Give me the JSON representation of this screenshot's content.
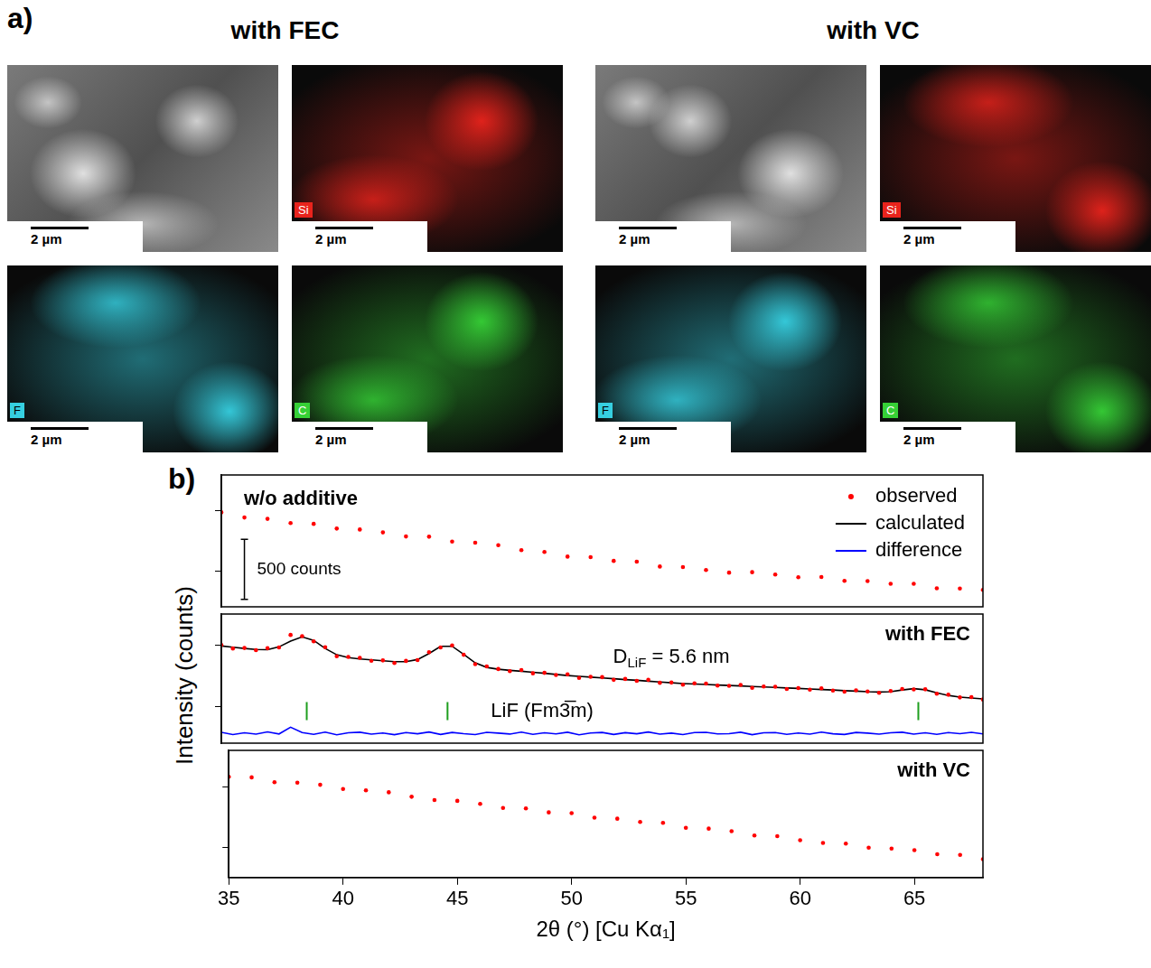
{
  "panel_a": {
    "label": "a)",
    "groups": [
      {
        "title": "with FEC",
        "tiles": [
          {
            "scale_bar": "2 µm"
          },
          {
            "element": "Si",
            "color": "#e8231c",
            "scale_bar": "2 µm"
          },
          {
            "element": "F",
            "color": "#36cfe0",
            "scale_bar": "2 µm"
          },
          {
            "element": "C",
            "color": "#36d036",
            "scale_bar": "2 µm"
          }
        ]
      },
      {
        "title": "with VC",
        "tiles": [
          {
            "scale_bar": "2 µm"
          },
          {
            "element": "Si",
            "color": "#e8231c",
            "scale_bar": "2 µm"
          },
          {
            "element": "F",
            "color": "#36cfe0",
            "scale_bar": "2 µm"
          },
          {
            "element": "C",
            "color": "#36d036",
            "scale_bar": "2 µm"
          }
        ]
      }
    ]
  },
  "panel_b": {
    "label": "b)",
    "y_label": "Intensity (counts)"
  },
  "chart_data": [
    {
      "type": "scatter",
      "title": "w/o additive",
      "x": [
        35,
        36,
        37,
        38,
        39,
        40,
        41,
        42,
        43,
        44,
        45,
        46,
        47,
        48,
        49,
        50,
        51,
        52,
        53,
        54,
        55,
        56,
        57,
        58,
        59,
        60,
        61,
        62,
        63,
        64,
        65,
        66,
        67,
        68
      ],
      "series": [
        {
          "name": "observed",
          "type": "scatter",
          "color": "#ff0000",
          "values": [
            2488,
            2445,
            2434,
            2399,
            2392,
            2353,
            2345,
            2321,
            2287,
            2285,
            2244,
            2235,
            2214,
            2173,
            2158,
            2119,
            2114,
            2083,
            2077,
            2036,
            2031,
            2007,
            1985,
            1989,
            1969,
            1947,
            1949,
            1917,
            1915,
            1892,
            1892,
            1855,
            1853,
            1841
          ]
        }
      ],
      "xlim": [
        35,
        68
      ],
      "ylim": [
        1700,
        2800
      ],
      "yticks": [
        2000,
        2500
      ],
      "grid": false,
      "tick_labels": false,
      "legend": "upper right",
      "scale_bar": {
        "value": 500,
        "label": "500 counts",
        "x": 36,
        "y": 1763
      }
    },
    {
      "type": "scatter",
      "title": "with FEC",
      "x": [
        35,
        35.5,
        36,
        36.5,
        37,
        37.5,
        38,
        38.5,
        39,
        39.5,
        40,
        40.5,
        41,
        41.5,
        42,
        42.5,
        43,
        43.5,
        44,
        44.5,
        45,
        45.5,
        46,
        46.5,
        47,
        47.5,
        48,
        48.5,
        49,
        49.5,
        50,
        50.5,
        51,
        51.5,
        52,
        52.5,
        53,
        53.5,
        54,
        54.5,
        55,
        55.5,
        56,
        56.5,
        57,
        57.5,
        58,
        58.5,
        59,
        59.5,
        60,
        60.5,
        61,
        61.5,
        62,
        62.5,
        63,
        63.5,
        64,
        64.5,
        65,
        65.5,
        66,
        66.5,
        67,
        67.5,
        68
      ],
      "series": [
        {
          "name": "observed",
          "type": "scatter",
          "color": "#ff0000",
          "values": [
            1998,
            1970,
            1974,
            1956,
            1972,
            1978,
            2080,
            2070,
            2028,
            1980,
            1907,
            1901,
            1894,
            1870,
            1873,
            1852,
            1869,
            1876,
            1940,
            1978,
            1995,
            1919,
            1843,
            1824,
            1803,
            1786,
            1795,
            1768,
            1772,
            1754,
            1759,
            1731,
            1740,
            1737,
            1715,
            1722,
            1707,
            1715,
            1691,
            1693,
            1675,
            1687,
            1685,
            1668,
            1666,
            1674,
            1650,
            1661,
            1659,
            1641,
            1648,
            1635,
            1646,
            1628,
            1618,
            1630,
            1620,
            1609,
            1624,
            1641,
            1637,
            1638,
            1602,
            1594,
            1572,
            1575,
            1555
          ]
        },
        {
          "name": "calculated",
          "type": "line",
          "color": "#000000",
          "values": [
            1990,
            1980,
            1970,
            1962,
            1960,
            1983,
            2030,
            2064,
            2036,
            1970,
            1919,
            1896,
            1885,
            1877,
            1870,
            1863,
            1863,
            1880,
            1929,
            1987,
            1988,
            1922,
            1853,
            1816,
            1801,
            1792,
            1785,
            1776,
            1768,
            1759,
            1750,
            1743,
            1737,
            1730,
            1724,
            1717,
            1711,
            1704,
            1698,
            1691,
            1685,
            1681,
            1677,
            1673,
            1669,
            1665,
            1661,
            1657,
            1653,
            1649,
            1645,
            1641,
            1636,
            1632,
            1627,
            1623,
            1618,
            1616,
            1619,
            1632,
            1643,
            1634,
            1610,
            1588,
            1575,
            1567,
            1560
          ]
        },
        {
          "name": "difference",
          "type": "line",
          "color": "#0000ff",
          "values": [
            1288,
            1270,
            1284,
            1274,
            1292,
            1275,
            1330,
            1286,
            1272,
            1290,
            1268,
            1285,
            1289,
            1273,
            1283,
            1269,
            1286,
            1276,
            1291,
            1271,
            1287,
            1277,
            1270,
            1288,
            1282,
            1274,
            1290,
            1272,
            1284,
            1275,
            1289,
            1268,
            1283,
            1287,
            1271,
            1285,
            1276,
            1291,
            1273,
            1282,
            1270,
            1286,
            1288,
            1275,
            1277,
            1289,
            1269,
            1284,
            1286,
            1272,
            1283,
            1274,
            1290,
            1276,
            1271,
            1287,
            1282,
            1273,
            1285,
            1289,
            1274,
            1284,
            1272,
            1286,
            1277,
            1288,
            1275
          ]
        }
      ],
      "xlim": [
        35,
        68
      ],
      "ylim": [
        1200,
        2250
      ],
      "yticks": [
        1500,
        2000
      ],
      "grid": false,
      "tick_labels": false,
      "annotations": [
        {
          "text": "DLiF = 5.6 nm",
          "subscript": "LiF",
          "x": 54.5,
          "y": 1897
        }
      ],
      "reflections": {
        "label": "LiF (Fm3̅m)",
        "x": [
          38.7,
          44.8,
          65.2
        ],
        "y": 1460,
        "label_x": 48.9,
        "color": "#1e9e1e"
      }
    },
    {
      "type": "scatter",
      "title": "with VC",
      "x": [
        35,
        36,
        37,
        38,
        39,
        40,
        41,
        42,
        43,
        44,
        45,
        46,
        47,
        48,
        49,
        50,
        51,
        52,
        53,
        54,
        55,
        56,
        57,
        58,
        59,
        60,
        61,
        62,
        63,
        64,
        65,
        66,
        67,
        68
      ],
      "series": [
        {
          "name": "observed",
          "type": "scatter",
          "color": "#ff0000",
          "values": [
            1582,
            1577,
            1537,
            1533,
            1516,
            1481,
            1470,
            1454,
            1417,
            1390,
            1383,
            1358,
            1325,
            1321,
            1288,
            1282,
            1244,
            1236,
            1209,
            1201,
            1160,
            1154,
            1133,
            1097,
            1092,
            1058,
            1036,
            1030,
            996,
            989,
            976,
            942,
            937,
            901
          ]
        }
      ],
      "xlim": [
        35,
        68
      ],
      "xticks": [
        35,
        40,
        45,
        50,
        55,
        60,
        65
      ],
      "x_label": "2θ (°) [Cu Kα₁]",
      "ylim": [
        750,
        1800
      ],
      "yticks": [
        1000,
        1500
      ],
      "grid": false,
      "tick_labels": "x"
    }
  ]
}
